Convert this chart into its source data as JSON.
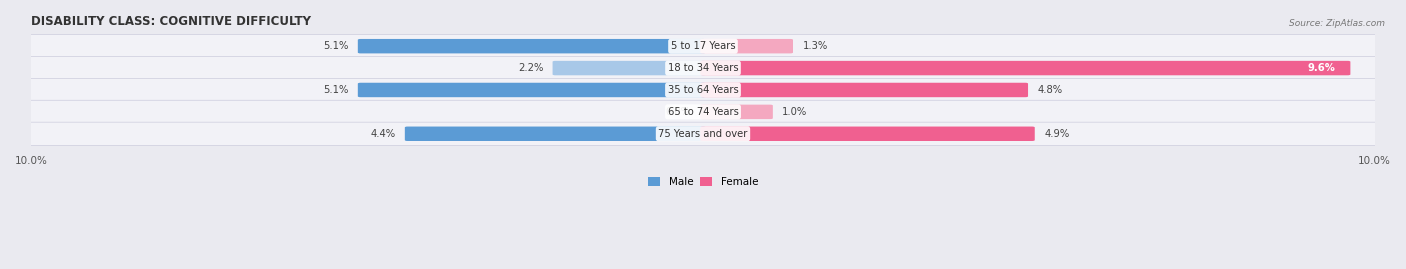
{
  "title": "DISABILITY CLASS: COGNITIVE DIFFICULTY",
  "source": "Source: ZipAtlas.com",
  "categories": [
    "5 to 17 Years",
    "18 to 34 Years",
    "35 to 64 Years",
    "65 to 74 Years",
    "75 Years and over"
  ],
  "male_values": [
    5.1,
    2.2,
    5.1,
    0.0,
    4.4
  ],
  "female_values": [
    1.3,
    9.6,
    4.8,
    1.0,
    4.9
  ],
  "male_color_dark": "#5b9bd5",
  "male_color_light": "#a8c8e8",
  "female_color_dark": "#f06090",
  "female_color_light": "#f4a8c0",
  "max_val": 10.0,
  "background_color": "#eaeaf0",
  "row_color": "#f2f2f7",
  "title_fontsize": 8.5,
  "label_fontsize": 7.2,
  "tick_fontsize": 7.5,
  "value_threshold": 2.5
}
